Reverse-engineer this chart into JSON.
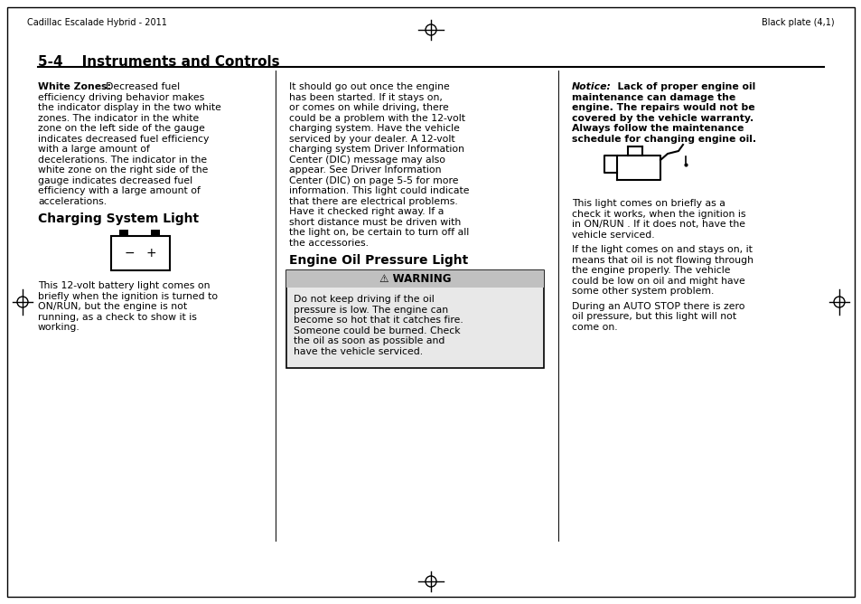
{
  "page_bg": "#ffffff",
  "border_color": "#000000",
  "header_left": "Cadillac Escalade Hybrid - 2011",
  "header_right": "Black plate (4,1)",
  "section_title": "5-4    Instruments and Controls",
  "warning_title": "⚠ WARNING",
  "col1_para1_lines": [
    "efficiency driving behavior makes",
    "the indicator display in the two white",
    "zones. The indicator in the white",
    "zone on the left side of the gauge",
    "indicates decreased fuel efficiency",
    "with a large amount of",
    "decelerations. The indicator in the",
    "white zone on the right side of the",
    "gauge indicates decreased fuel",
    "efficiency with a large amount of",
    "accelerations."
  ],
  "col1_after": [
    "This 12-volt battery light comes on",
    "briefly when the ignition is turned to",
    "ON/RUN, but the engine is not",
    "running, as a check to show it is",
    "working."
  ],
  "col2_para1": [
    "It should go out once the engine",
    "has been started. If it stays on,",
    "or comes on while driving, there",
    "could be a problem with the 12-volt",
    "charging system. Have the vehicle",
    "serviced by your dealer. A 12-volt",
    "charging system Driver Information",
    "Center (DIC) message may also",
    "appear. See Driver Information",
    "Center (DIC) on page 5-5 for more",
    "information. This light could indicate",
    "that there are electrical problems.",
    "Have it checked right away. If a",
    "short distance must be driven with",
    "the light on, be certain to turn off all",
    "the accessories."
  ],
  "warn_lines": [
    "Do not keep driving if the oil",
    "pressure is low. The engine can",
    "become so hot that it catches fire.",
    "Someone could be burned. Check",
    "the oil as soon as possible and",
    "have the vehicle serviced."
  ],
  "notice_rest": [
    "maintenance can damage the",
    "engine. The repairs would not be",
    "covered by the vehicle warranty.",
    "Always follow the maintenance",
    "schedule for changing engine oil."
  ],
  "col3_t1": [
    "This light comes on briefly as a",
    "check it works, when the ignition is",
    "in ON/RUN . If it does not, have the",
    "vehicle serviced."
  ],
  "col3_t2": [
    "If the light comes on and stays on, it",
    "means that oil is not flowing through",
    "the engine properly. The vehicle",
    "could be low on oil and might have",
    "some other system problem."
  ],
  "col3_t3": [
    "During an AUTO STOP there is zero",
    "oil pressure, but this light will not",
    "come on."
  ]
}
